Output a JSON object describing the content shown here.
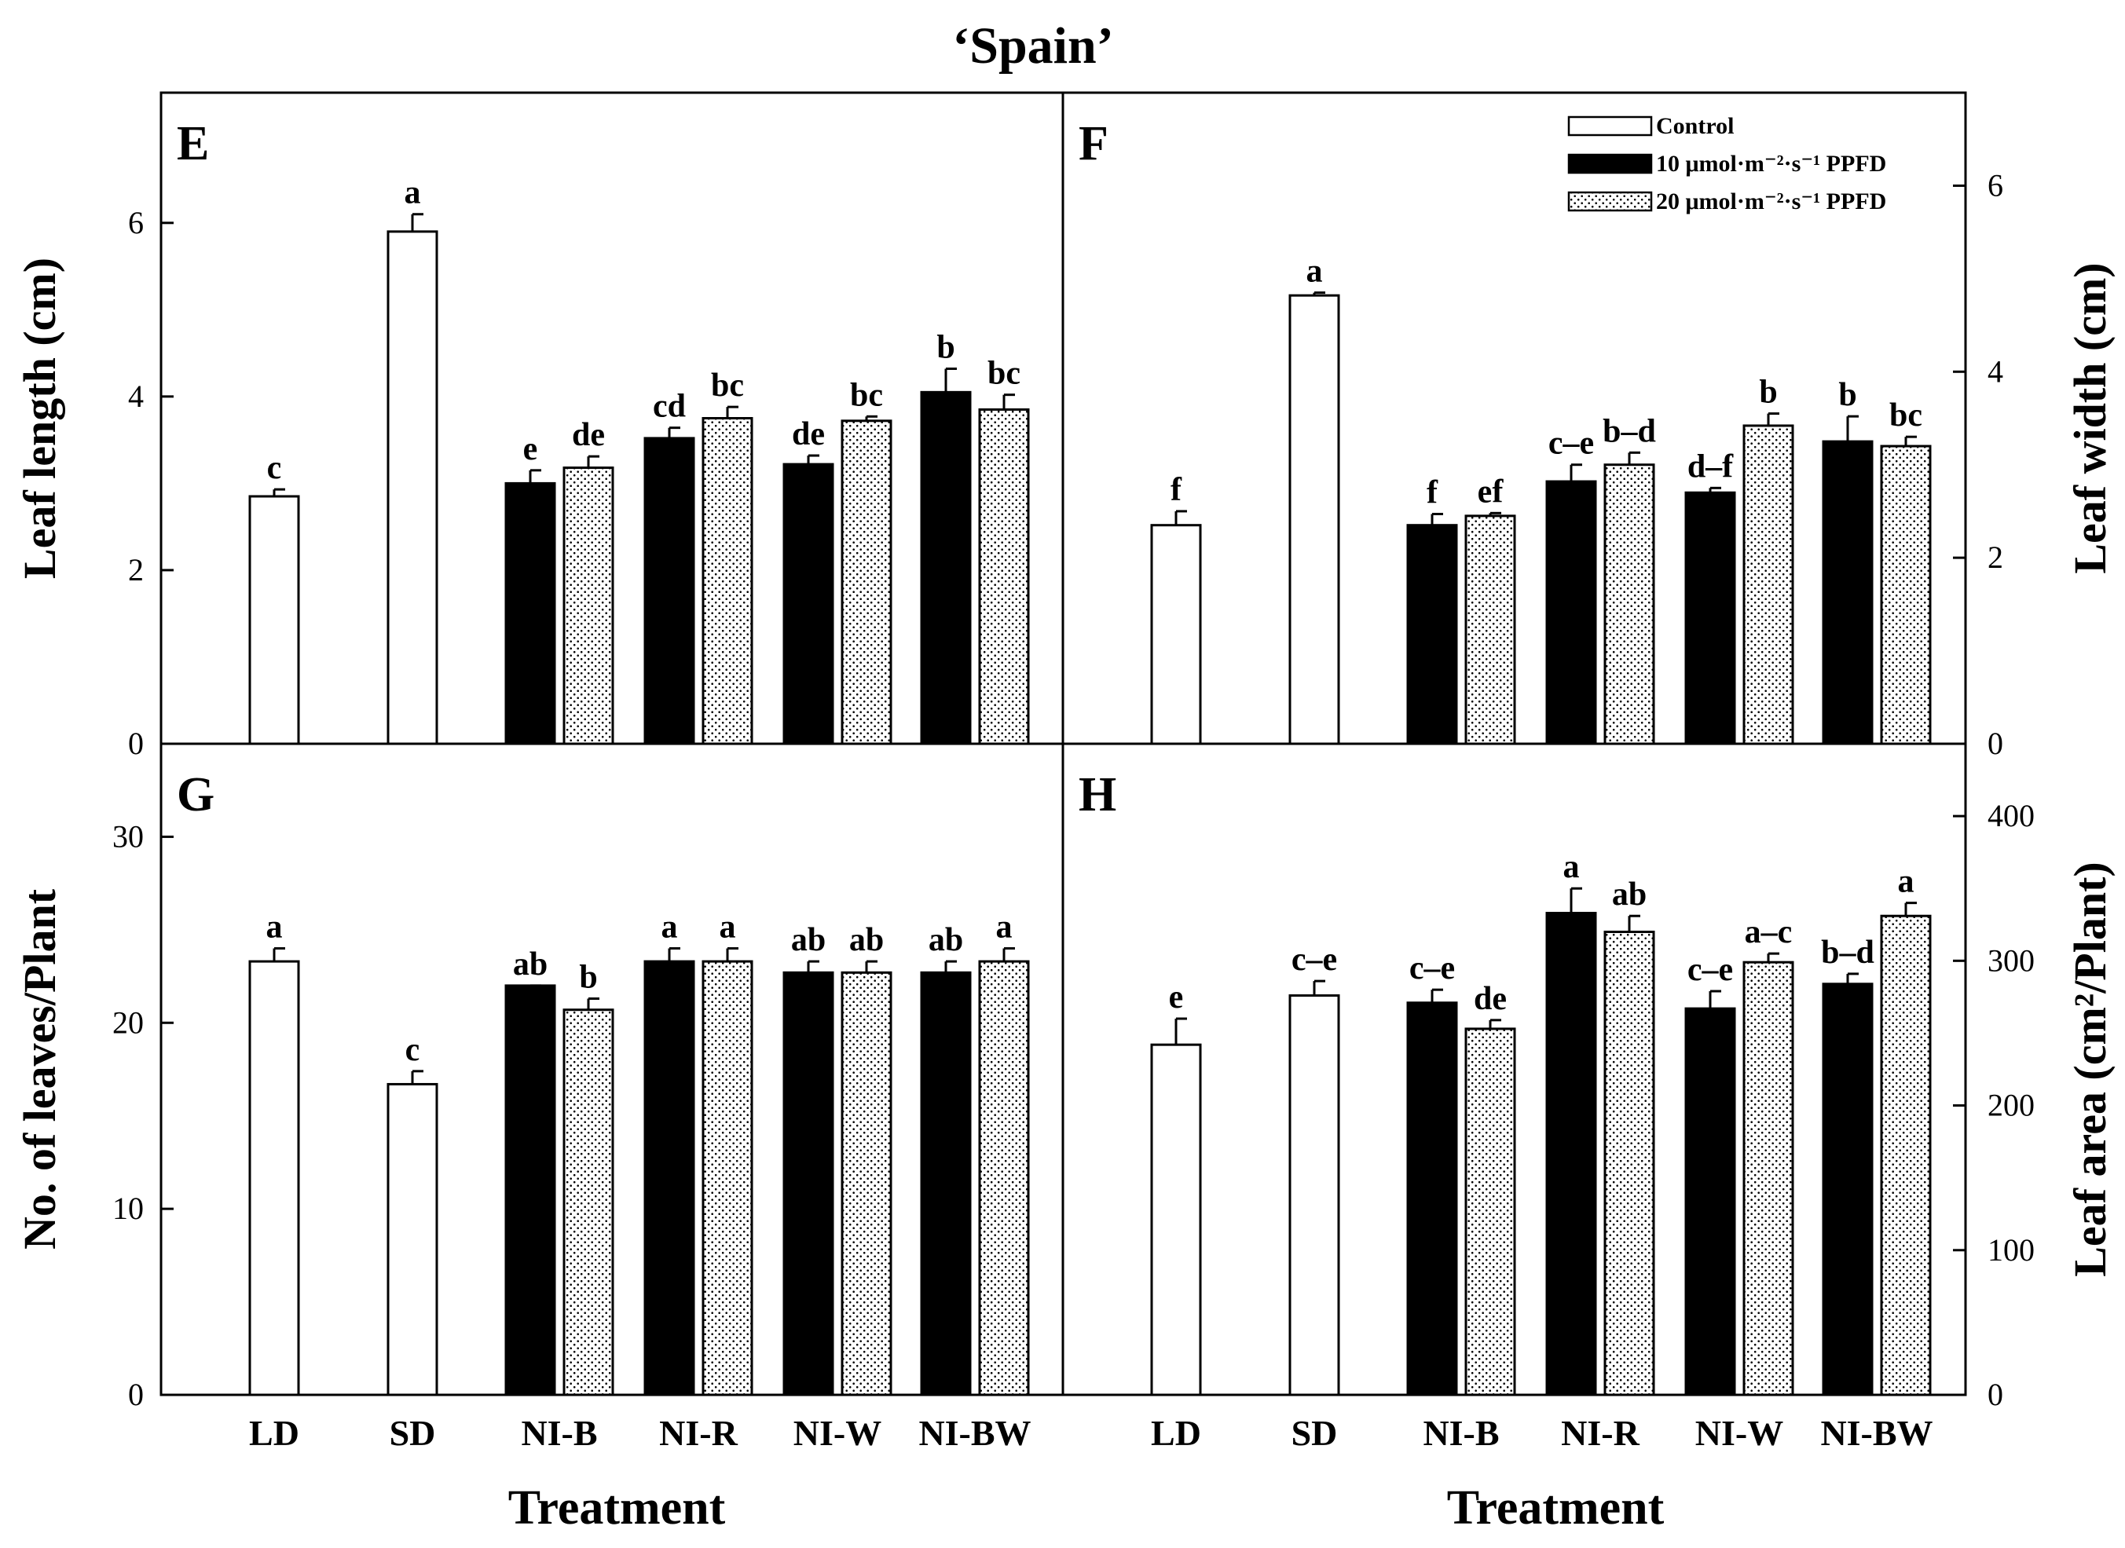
{
  "figure": {
    "title": "‘Spain’",
    "xlabel": "Treatment"
  },
  "legend": {
    "entries": [
      {
        "key": "control",
        "label": "Control",
        "fill": "#ffffff"
      },
      {
        "key": "ppfd10",
        "label": "10 μmol·m⁻²·s⁻¹ PPFD",
        "fill": "#000000"
      },
      {
        "key": "ppfd20",
        "label": "20 μmol·m⁻²·s⁻¹ PPFD",
        "fill": "dots"
      }
    ]
  },
  "chart_data": [
    {
      "panel": "E",
      "type": "bar",
      "ylabel": "Leaf length (cm)",
      "yaxis_side": "left",
      "ylim": [
        0,
        7.5
      ],
      "yticks": [
        0,
        2,
        4,
        6
      ],
      "categories": [
        "LD",
        "SD",
        "NI-B",
        "NI-R",
        "NI-W",
        "NI-BW"
      ],
      "bars": [
        {
          "category": "LD",
          "series": "control",
          "value": 2.85,
          "error": 0.08,
          "letter": "c"
        },
        {
          "category": "SD",
          "series": "control",
          "value": 5.9,
          "error": 0.2,
          "letter": "a"
        },
        {
          "category": "NI-B",
          "series": "ppfd10",
          "value": 3.0,
          "error": 0.15,
          "letter": "e"
        },
        {
          "category": "NI-B",
          "series": "ppfd20",
          "value": 3.18,
          "error": 0.13,
          "letter": "de"
        },
        {
          "category": "NI-R",
          "series": "ppfd10",
          "value": 3.52,
          "error": 0.12,
          "letter": "cd"
        },
        {
          "category": "NI-R",
          "series": "ppfd20",
          "value": 3.75,
          "error": 0.13,
          "letter": "bc"
        },
        {
          "category": "NI-W",
          "series": "ppfd10",
          "value": 3.22,
          "error": 0.1,
          "letter": "de"
        },
        {
          "category": "NI-W",
          "series": "ppfd20",
          "value": 3.72,
          "error": 0.05,
          "letter": "bc"
        },
        {
          "category": "NI-BW",
          "series": "ppfd10",
          "value": 4.05,
          "error": 0.27,
          "letter": "b"
        },
        {
          "category": "NI-BW",
          "series": "ppfd20",
          "value": 3.85,
          "error": 0.17,
          "letter": "bc"
        }
      ]
    },
    {
      "panel": "F",
      "type": "bar",
      "ylabel": "Leaf width (cm)",
      "yaxis_side": "right",
      "ylim": [
        0,
        7
      ],
      "yticks": [
        0,
        2,
        4,
        6
      ],
      "categories": [
        "LD",
        "SD",
        "NI-B",
        "NI-R",
        "NI-W",
        "NI-BW"
      ],
      "bars": [
        {
          "category": "LD",
          "series": "control",
          "value": 2.35,
          "error": 0.15,
          "letter": "f"
        },
        {
          "category": "SD",
          "series": "control",
          "value": 4.82,
          "error": 0.03,
          "letter": "a"
        },
        {
          "category": "NI-B",
          "series": "ppfd10",
          "value": 2.35,
          "error": 0.12,
          "letter": "f"
        },
        {
          "category": "NI-B",
          "series": "ppfd20",
          "value": 2.45,
          "error": 0.03,
          "letter": "ef"
        },
        {
          "category": "NI-R",
          "series": "ppfd10",
          "value": 2.82,
          "error": 0.18,
          "letter": "c–e"
        },
        {
          "category": "NI-R",
          "series": "ppfd20",
          "value": 3.0,
          "error": 0.13,
          "letter": "b–d"
        },
        {
          "category": "NI-W",
          "series": "ppfd10",
          "value": 2.7,
          "error": 0.05,
          "letter": "d–f"
        },
        {
          "category": "NI-W",
          "series": "ppfd20",
          "value": 3.42,
          "error": 0.13,
          "letter": "b"
        },
        {
          "category": "NI-BW",
          "series": "ppfd10",
          "value": 3.25,
          "error": 0.27,
          "letter": "b"
        },
        {
          "category": "NI-BW",
          "series": "ppfd20",
          "value": 3.2,
          "error": 0.1,
          "letter": "bc"
        }
      ]
    },
    {
      "panel": "G",
      "type": "bar",
      "ylabel": "No. of leaves/Plant",
      "yaxis_side": "left",
      "ylim": [
        0,
        35
      ],
      "yticks": [
        0,
        10,
        20,
        30
      ],
      "categories": [
        "LD",
        "SD",
        "NI-B",
        "NI-R",
        "NI-W",
        "NI-BW"
      ],
      "bars": [
        {
          "category": "LD",
          "series": "control",
          "value": 23.3,
          "error": 0.7,
          "letter": "a"
        },
        {
          "category": "SD",
          "series": "control",
          "value": 16.7,
          "error": 0.7,
          "letter": "c"
        },
        {
          "category": "NI-B",
          "series": "ppfd10",
          "value": 22.0,
          "error": 0.0,
          "letter": "ab"
        },
        {
          "category": "NI-B",
          "series": "ppfd20",
          "value": 20.7,
          "error": 0.6,
          "letter": "b"
        },
        {
          "category": "NI-R",
          "series": "ppfd10",
          "value": 23.3,
          "error": 0.7,
          "letter": "a"
        },
        {
          "category": "NI-R",
          "series": "ppfd20",
          "value": 23.3,
          "error": 0.7,
          "letter": "a"
        },
        {
          "category": "NI-W",
          "series": "ppfd10",
          "value": 22.7,
          "error": 0.6,
          "letter": "ab"
        },
        {
          "category": "NI-W",
          "series": "ppfd20",
          "value": 22.7,
          "error": 0.6,
          "letter": "ab"
        },
        {
          "category": "NI-BW",
          "series": "ppfd10",
          "value": 22.7,
          "error": 0.6,
          "letter": "ab"
        },
        {
          "category": "NI-BW",
          "series": "ppfd20",
          "value": 23.3,
          "error": 0.7,
          "letter": "a"
        }
      ]
    },
    {
      "panel": "H",
      "type": "bar",
      "ylabel": "Leaf area (cm²/Plant)",
      "yaxis_side": "right",
      "ylim": [
        0,
        450
      ],
      "yticks": [
        0,
        100,
        200,
        300,
        400
      ],
      "categories": [
        "LD",
        "SD",
        "NI-B",
        "NI-R",
        "NI-W",
        "NI-BW"
      ],
      "bars": [
        {
          "category": "LD",
          "series": "control",
          "value": 242,
          "error": 18,
          "letter": "e"
        },
        {
          "category": "SD",
          "series": "control",
          "value": 276,
          "error": 10,
          "letter": "c–e"
        },
        {
          "category": "NI-B",
          "series": "ppfd10",
          "value": 271,
          "error": 9,
          "letter": "c–e"
        },
        {
          "category": "NI-B",
          "series": "ppfd20",
          "value": 253,
          "error": 6,
          "letter": "de"
        },
        {
          "category": "NI-R",
          "series": "ppfd10",
          "value": 333,
          "error": 17,
          "letter": "a"
        },
        {
          "category": "NI-R",
          "series": "ppfd20",
          "value": 320,
          "error": 11,
          "letter": "ab"
        },
        {
          "category": "NI-W",
          "series": "ppfd10",
          "value": 267,
          "error": 12,
          "letter": "c–e"
        },
        {
          "category": "NI-W",
          "series": "ppfd20",
          "value": 299,
          "error": 6,
          "letter": "a–c"
        },
        {
          "category": "NI-BW",
          "series": "ppfd10",
          "value": 284,
          "error": 7,
          "letter": "b–d"
        },
        {
          "category": "NI-BW",
          "series": "ppfd20",
          "value": 331,
          "error": 9,
          "letter": "a"
        }
      ]
    }
  ]
}
